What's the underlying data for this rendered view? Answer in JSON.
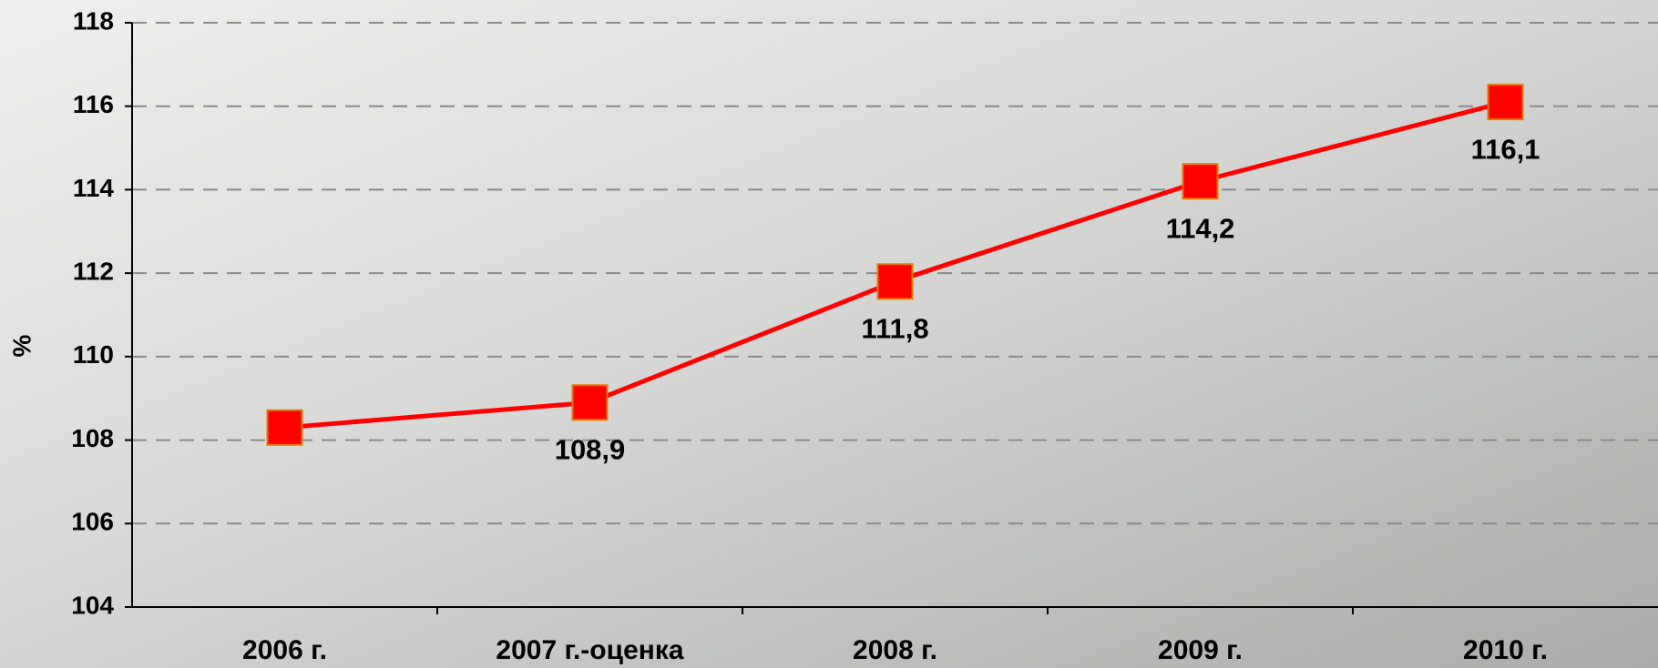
{
  "chart_data": {
    "type": "line",
    "y_label": "%",
    "categories": [
      "2006 г.",
      "2007 г.-оценка",
      "2008 г.",
      "2009 г.",
      "2010 г."
    ],
    "series": [
      {
        "color": "#ff0000",
        "marker_color": "#ff0000",
        "values": [
          108.3,
          108.9,
          111.8,
          114.2,
          116.1
        ],
        "value_labels": [
          null,
          "108,9",
          "111,8",
          "114,2",
          "116,1"
        ]
      }
    ],
    "ylim": [
      104,
      118
    ],
    "yticks": [
      104,
      106,
      108,
      110,
      112,
      114,
      116,
      118
    ],
    "grid": true
  }
}
